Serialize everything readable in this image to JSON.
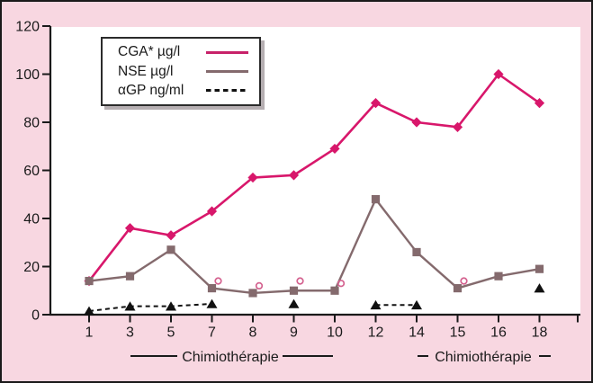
{
  "figure": {
    "background_color": "#f8d7e1",
    "plot_background": "#ffffff",
    "border_color": "#1a1a1a",
    "axis_color": "#1a1a1a"
  },
  "chart_data": {
    "type": "line",
    "categories": [
      "1",
      "3",
      "5",
      "7",
      "8",
      "9",
      "10",
      "12",
      "14",
      "15",
      "16",
      "18"
    ],
    "xlabel": "",
    "ylabel": "",
    "ylim": [
      0,
      120
    ],
    "yticks": [
      0,
      20,
      40,
      60,
      80,
      100,
      120
    ],
    "grid": false,
    "legend_position": "top-left",
    "series": [
      {
        "name": "CGA* µg/l",
        "marker": "diamond",
        "line": "solid",
        "color": "#d8176b",
        "values": [
          14,
          36,
          33,
          43,
          57,
          58,
          69,
          88,
          80,
          78,
          100,
          88
        ]
      },
      {
        "name": "NSE µg/l",
        "marker": "square",
        "line": "solid",
        "color": "#846a6d",
        "values": [
          14,
          16,
          27,
          11,
          9,
          10,
          10,
          48,
          26,
          11,
          16,
          19
        ]
      },
      {
        "name": "αGP ng/ml",
        "marker": "triangle",
        "line": "dashed",
        "color": "#111111",
        "points": [
          {
            "x": "1",
            "value": 1.5
          },
          {
            "x": "3",
            "value": 3.5
          },
          {
            "x": "5",
            "value": 3.5
          },
          {
            "x": "7",
            "value": 4.5
          },
          {
            "x": "9",
            "value": 4.5
          },
          {
            "x": "12",
            "value": 4
          },
          {
            "x": "14",
            "value": 4
          },
          {
            "x": "18",
            "value": 11
          }
        ],
        "connected_runs": [
          [
            "1",
            "3",
            "5",
            "7"
          ],
          [
            "12",
            "14"
          ]
        ]
      }
    ],
    "extra_markers": {
      "shape": "open-circle",
      "color": "#d4628f",
      "points": [
        {
          "x": "7",
          "value": 14
        },
        {
          "x": "8",
          "value": 12
        },
        {
          "x": "9",
          "value": 14
        },
        {
          "x": "10",
          "value": 13
        },
        {
          "x": "15",
          "value": 14
        }
      ]
    },
    "annotations": [
      {
        "text": "Chimiothérapie",
        "span_categories": [
          "3",
          "10"
        ]
      },
      {
        "text": "Chimiothérapie",
        "span_categories": [
          "14",
          "18"
        ]
      }
    ]
  }
}
